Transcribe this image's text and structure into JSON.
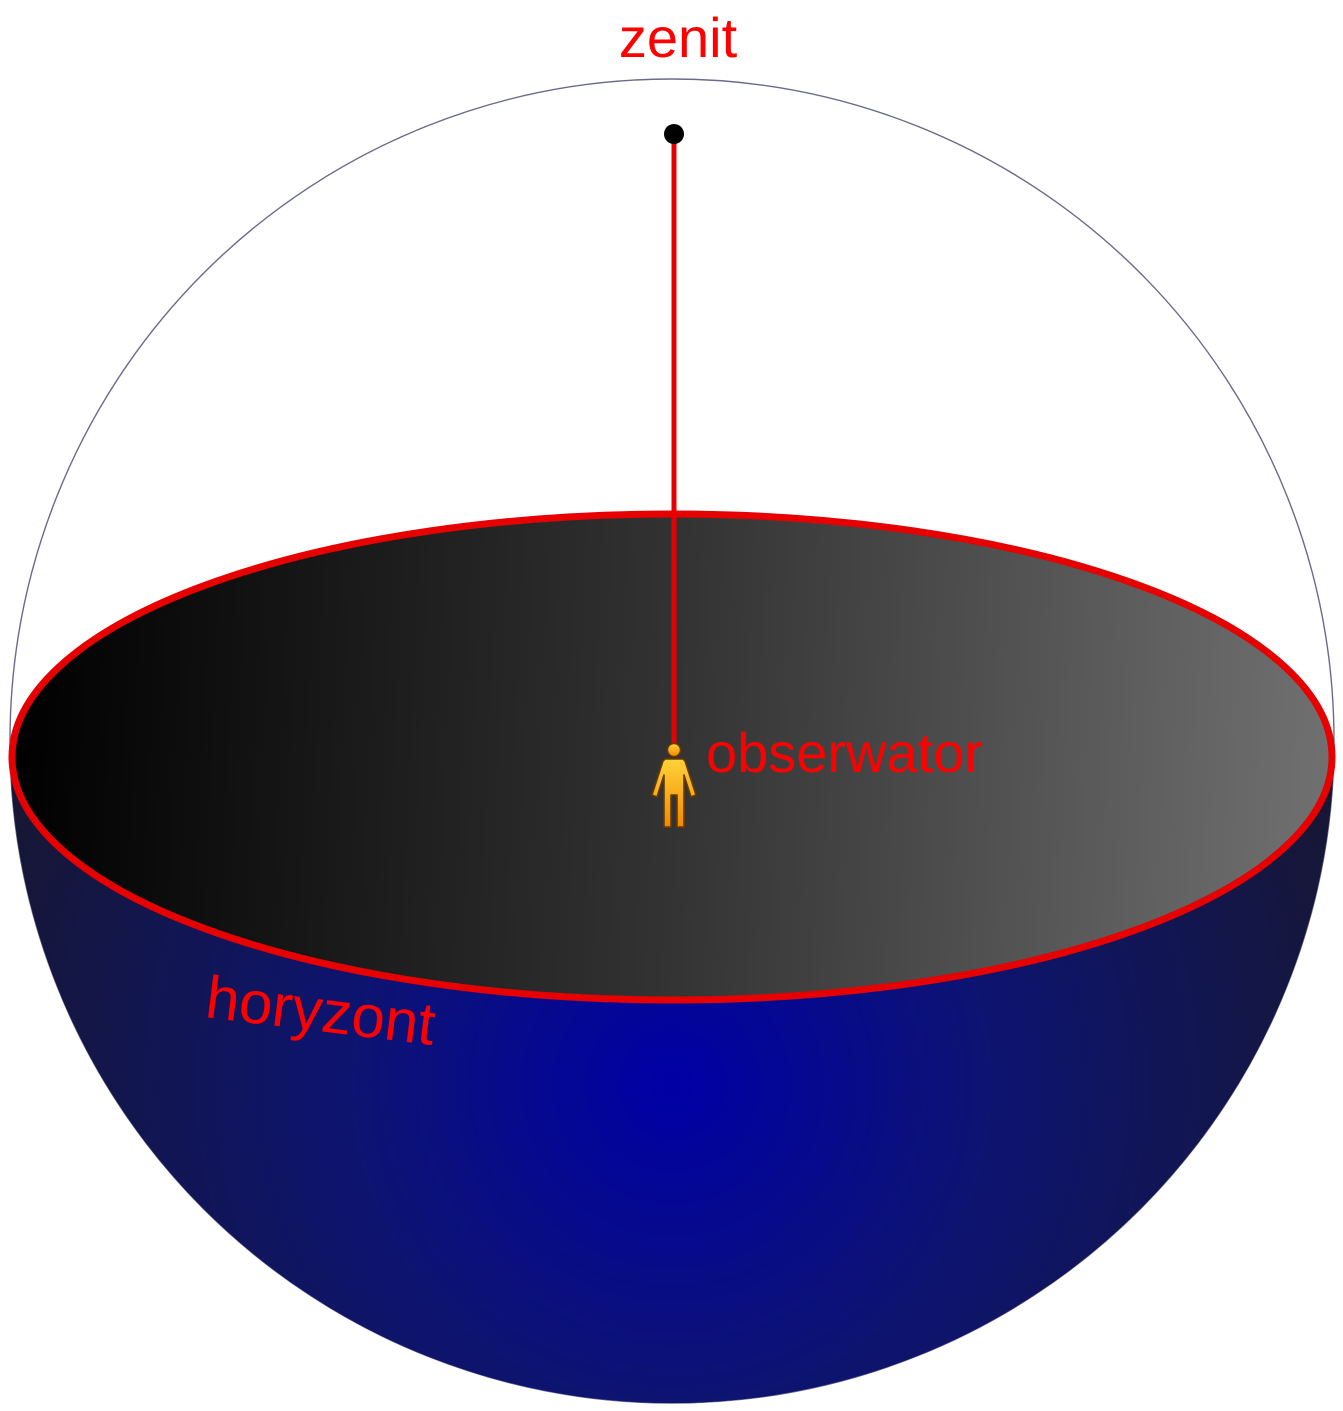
{
  "labels": {
    "zenith": "zenit",
    "observer": "obserwator",
    "horizon": "horyzont"
  },
  "colors": {
    "accent_red": "#ff0000",
    "line_red": "#e60000",
    "sphere_outline": "#6a6a8c",
    "lower_hemisphere_center": "#0000a6",
    "lower_hemisphere_edge": "#171733",
    "horizon_plane_left": "#000000",
    "horizon_plane_right": "#717171",
    "zenith_dot": "#000000",
    "observer_figure_top": "#ffd23a",
    "observer_figure_bottom": "#f08a00",
    "observer_figure_outline": "#6b3a00"
  },
  "icons": {
    "observer": "person-icon",
    "zenith_point": "dot-marker"
  }
}
